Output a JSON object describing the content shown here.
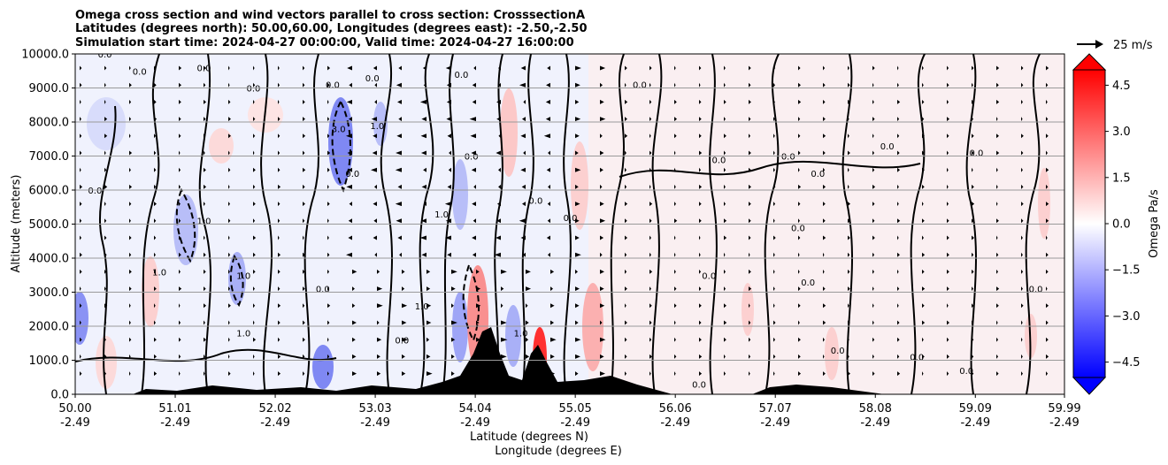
{
  "chart_data": {
    "type": "heatmap",
    "title_lines": [
      "Omega cross section and wind vectors parallel to cross section: CrosssectionA",
      "Latitudes (degrees north): 50.00,60.00, Longitudes (degrees east): -2.50,-2.50",
      "Simulation start time: 2024-04-27 00:00:00, Valid time: 2024-04-27 16:00:00"
    ],
    "ylabel": "Altitude (meters)",
    "xlabel_lat": "Latitude (degrees N)",
    "xlabel_lon": "Longitude (degrees E)",
    "ylim": [
      0,
      10000
    ],
    "xlim": [
      50.0,
      59.99
    ],
    "y_ticks": [
      0,
      1000,
      2000,
      3000,
      4000,
      5000,
      6000,
      7000,
      8000,
      9000,
      10000
    ],
    "y_tick_labels": [
      "0.0",
      "1000.0",
      "2000.0",
      "3000.0",
      "4000.0",
      "5000.0",
      "6000.0",
      "7000.0",
      "8000.0",
      "9000.0",
      "10000.0"
    ],
    "x_ticks": [
      {
        "lat": "50.00",
        "lon": "-2.49",
        "pos": 50.0
      },
      {
        "lat": "51.01",
        "lon": "-2.49",
        "pos": 51.01
      },
      {
        "lat": "52.02",
        "lon": "-2.49",
        "pos": 52.02
      },
      {
        "lat": "53.03",
        "lon": "-2.49",
        "pos": 53.03
      },
      {
        "lat": "54.04",
        "lon": "-2.49",
        "pos": 54.04
      },
      {
        "lat": "55.05",
        "lon": "-2.49",
        "pos": 55.05
      },
      {
        "lat": "56.06",
        "lon": "-2.49",
        "pos": 56.06
      },
      {
        "lat": "57.07",
        "lon": "-2.49",
        "pos": 57.07
      },
      {
        "lat": "58.08",
        "lon": "-2.49",
        "pos": 58.08
      },
      {
        "lat": "59.09",
        "lon": "-2.49",
        "pos": 59.09
      },
      {
        "lat": "59.99",
        "lon": "-2.49",
        "pos": 59.99
      }
    ],
    "grid": "horizontal",
    "colorbar": {
      "label": "Omega Pa/s",
      "range": [
        -5.0,
        5.0
      ],
      "ticks": [
        4.5,
        3.0,
        1.5,
        0.0,
        -1.5,
        -3.0,
        -4.5
      ],
      "tick_labels": [
        "4.5",
        "3.0",
        "1.5",
        "0.0",
        "−1.5",
        "−3.0",
        "−4.5"
      ],
      "negative_color": "#0000ff",
      "positive_color": "#ff0000",
      "extend": "both"
    },
    "vector_key": {
      "label": "25 m/s"
    },
    "contour_labels": [
      {
        "text": "0.0",
        "lat": 50.3,
        "alt": 10000
      },
      {
        "text": "0.0",
        "lat": 50.65,
        "alt": 9500
      },
      {
        "text": "0.0",
        "lat": 51.3,
        "alt": 9600
      },
      {
        "text": "0.0",
        "lat": 53.0,
        "alt": 9300
      },
      {
        "text": "0.0",
        "lat": 52.6,
        "alt": 9100
      },
      {
        "text": "3.0",
        "lat": 52.66,
        "alt": 7800
      },
      {
        "text": "1.0",
        "lat": 53.05,
        "alt": 7900
      },
      {
        "text": "1.0",
        "lat": 53.7,
        "alt": 5300
      },
      {
        "text": "0.0",
        "lat": 52.8,
        "alt": 6500
      },
      {
        "text": "0.0",
        "lat": 51.8,
        "alt": 9000
      },
      {
        "text": "0.0",
        "lat": 50.2,
        "alt": 6000
      },
      {
        "text": "1.0",
        "lat": 51.3,
        "alt": 5100
      },
      {
        "text": "1.0",
        "lat": 51.7,
        "alt": 3500
      },
      {
        "text": "1.0",
        "lat": 50.85,
        "alt": 3600
      },
      {
        "text": "1.0",
        "lat": 51.7,
        "alt": 1800
      },
      {
        "text": "1.0",
        "lat": 53.5,
        "alt": 2600
      },
      {
        "text": "1.0",
        "lat": 54.5,
        "alt": 1800
      },
      {
        "text": "0.0",
        "lat": 53.9,
        "alt": 9400
      },
      {
        "text": "0.0",
        "lat": 54.0,
        "alt": 7000
      },
      {
        "text": "0.0",
        "lat": 54.65,
        "alt": 5700
      },
      {
        "text": "0.0",
        "lat": 55.0,
        "alt": 5200
      },
      {
        "text": "0.0",
        "lat": 55.7,
        "alt": 9100
      },
      {
        "text": "0.0",
        "lat": 56.5,
        "alt": 6900
      },
      {
        "text": "0.0",
        "lat": 57.2,
        "alt": 7000
      },
      {
        "text": "0.0",
        "lat": 57.5,
        "alt": 6500
      },
      {
        "text": "0.0",
        "lat": 59.1,
        "alt": 7100
      },
      {
        "text": "0.0",
        "lat": 58.2,
        "alt": 7300
      },
      {
        "text": "0.0",
        "lat": 57.3,
        "alt": 4900
      },
      {
        "text": "0.0",
        "lat": 56.4,
        "alt": 3500
      },
      {
        "text": "0.0",
        "lat": 57.4,
        "alt": 3300
      },
      {
        "text": "0.0",
        "lat": 58.5,
        "alt": 1100
      },
      {
        "text": "0.0",
        "lat": 59.0,
        "alt": 700
      },
      {
        "text": "0.0",
        "lat": 59.7,
        "alt": 3100
      },
      {
        "text": "0.0",
        "lat": 53.3,
        "alt": 1600
      },
      {
        "text": "0.0",
        "lat": 52.5,
        "alt": 3100
      },
      {
        "text": "0.0",
        "lat": 56.3,
        "alt": 300
      },
      {
        "text": "0.0",
        "lat": 57.7,
        "alt": 1300
      }
    ]
  }
}
